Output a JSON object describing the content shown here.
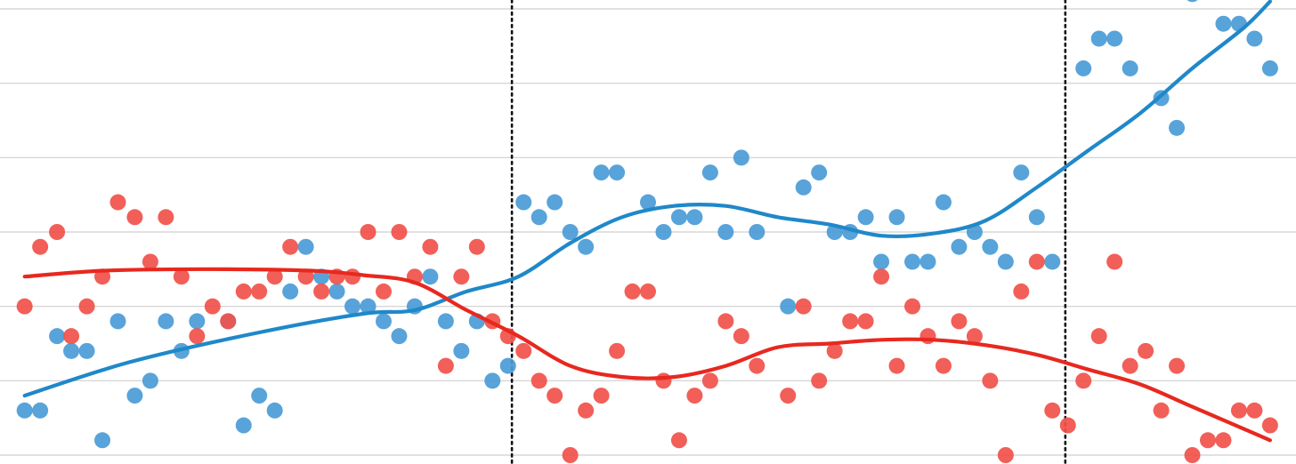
{
  "chart_data": {
    "type": "scatter",
    "title": "",
    "xlabel": "",
    "ylabel": "",
    "xlim": [
      0,
      1
    ],
    "ylim": [
      0,
      6
    ],
    "grid": true,
    "legend": "none",
    "ref_lines_x": [
      0.395,
      0.822
    ],
    "series": [
      {
        "color": "#4a9bd6",
        "trend_color": "#1f88c9",
        "points": [
          [
            0.019,
            0.6
          ],
          [
            0.031,
            0.6
          ],
          [
            0.044,
            1.6
          ],
          [
            0.055,
            1.4
          ],
          [
            0.067,
            1.4
          ],
          [
            0.079,
            0.2
          ],
          [
            0.091,
            1.8
          ],
          [
            0.104,
            0.8
          ],
          [
            0.116,
            1.0
          ],
          [
            0.128,
            1.8
          ],
          [
            0.14,
            1.4
          ],
          [
            0.152,
            1.8
          ],
          [
            0.176,
            1.8
          ],
          [
            0.188,
            0.4
          ],
          [
            0.2,
            0.8
          ],
          [
            0.212,
            0.6
          ],
          [
            0.224,
            2.2
          ],
          [
            0.236,
            2.8
          ],
          [
            0.248,
            2.4
          ],
          [
            0.26,
            2.2
          ],
          [
            0.272,
            2.0
          ],
          [
            0.284,
            2.0
          ],
          [
            0.296,
            1.8
          ],
          [
            0.308,
            1.6
          ],
          [
            0.32,
            2.0
          ],
          [
            0.332,
            2.4
          ],
          [
            0.344,
            1.8
          ],
          [
            0.356,
            1.4
          ],
          [
            0.368,
            1.8
          ],
          [
            0.38,
            1.0
          ],
          [
            0.392,
            1.2
          ],
          [
            0.404,
            3.4
          ],
          [
            0.416,
            3.2
          ],
          [
            0.428,
            3.4
          ],
          [
            0.44,
            3.0
          ],
          [
            0.452,
            2.8
          ],
          [
            0.464,
            3.8
          ],
          [
            0.476,
            3.8
          ],
          [
            0.5,
            3.4
          ],
          [
            0.512,
            3.0
          ],
          [
            0.524,
            3.2
          ],
          [
            0.536,
            3.2
          ],
          [
            0.548,
            3.8
          ],
          [
            0.56,
            3.0
          ],
          [
            0.572,
            4.0
          ],
          [
            0.584,
            3.0
          ],
          [
            0.608,
            2.0
          ],
          [
            0.62,
            3.6
          ],
          [
            0.632,
            3.8
          ],
          [
            0.644,
            3.0
          ],
          [
            0.656,
            3.0
          ],
          [
            0.668,
            3.2
          ],
          [
            0.68,
            2.6
          ],
          [
            0.692,
            3.2
          ],
          [
            0.704,
            2.6
          ],
          [
            0.716,
            2.6
          ],
          [
            0.728,
            3.4
          ],
          [
            0.74,
            2.8
          ],
          [
            0.752,
            3.0
          ],
          [
            0.764,
            2.8
          ],
          [
            0.776,
            2.6
          ],
          [
            0.788,
            3.8
          ],
          [
            0.8,
            3.2
          ],
          [
            0.812,
            2.6
          ],
          [
            0.836,
            5.2
          ],
          [
            0.848,
            5.6
          ],
          [
            0.86,
            5.6
          ],
          [
            0.872,
            5.2
          ],
          [
            0.896,
            4.8
          ],
          [
            0.908,
            4.4
          ],
          [
            0.92,
            6.2
          ],
          [
            0.944,
            5.8
          ],
          [
            0.956,
            5.8
          ],
          [
            0.968,
            5.6
          ],
          [
            0.98,
            5.2
          ]
        ],
        "trend": [
          [
            0.019,
            0.8
          ],
          [
            0.1,
            1.25
          ],
          [
            0.2,
            1.65
          ],
          [
            0.28,
            1.9
          ],
          [
            0.32,
            1.95
          ],
          [
            0.36,
            2.2
          ],
          [
            0.4,
            2.4
          ],
          [
            0.44,
            2.85
          ],
          [
            0.48,
            3.2
          ],
          [
            0.52,
            3.35
          ],
          [
            0.56,
            3.35
          ],
          [
            0.6,
            3.2
          ],
          [
            0.64,
            3.1
          ],
          [
            0.68,
            2.95
          ],
          [
            0.72,
            2.98
          ],
          [
            0.76,
            3.15
          ],
          [
            0.8,
            3.6
          ],
          [
            0.84,
            4.1
          ],
          [
            0.88,
            4.6
          ],
          [
            0.92,
            5.2
          ],
          [
            0.96,
            5.75
          ],
          [
            0.98,
            6.1
          ]
        ]
      },
      {
        "color": "#f0514a",
        "trend_color": "#e8281f",
        "points": [
          [
            0.019,
            2.0
          ],
          [
            0.031,
            2.8
          ],
          [
            0.044,
            3.0
          ],
          [
            0.055,
            1.6
          ],
          [
            0.067,
            2.0
          ],
          [
            0.079,
            2.4
          ],
          [
            0.091,
            3.4
          ],
          [
            0.104,
            3.2
          ],
          [
            0.116,
            2.6
          ],
          [
            0.128,
            3.2
          ],
          [
            0.14,
            2.4
          ],
          [
            0.152,
            1.6
          ],
          [
            0.164,
            2.0
          ],
          [
            0.176,
            1.8
          ],
          [
            0.188,
            2.2
          ],
          [
            0.2,
            2.2
          ],
          [
            0.212,
            2.4
          ],
          [
            0.224,
            2.8
          ],
          [
            0.236,
            2.4
          ],
          [
            0.248,
            2.2
          ],
          [
            0.26,
            2.4
          ],
          [
            0.272,
            2.4
          ],
          [
            0.284,
            3.0
          ],
          [
            0.296,
            2.2
          ],
          [
            0.308,
            3.0
          ],
          [
            0.32,
            2.4
          ],
          [
            0.332,
            2.8
          ],
          [
            0.344,
            1.2
          ],
          [
            0.356,
            2.4
          ],
          [
            0.368,
            2.8
          ],
          [
            0.38,
            1.8
          ],
          [
            0.392,
            1.6
          ],
          [
            0.404,
            1.4
          ],
          [
            0.416,
            1.0
          ],
          [
            0.428,
            0.8
          ],
          [
            0.44,
            0.0
          ],
          [
            0.452,
            0.6
          ],
          [
            0.464,
            0.8
          ],
          [
            0.476,
            1.4
          ],
          [
            0.488,
            2.2
          ],
          [
            0.5,
            2.2
          ],
          [
            0.512,
            1.0
          ],
          [
            0.524,
            0.2
          ],
          [
            0.536,
            0.8
          ],
          [
            0.548,
            1.0
          ],
          [
            0.56,
            1.8
          ],
          [
            0.572,
            1.6
          ],
          [
            0.584,
            1.2
          ],
          [
            0.608,
            0.8
          ],
          [
            0.62,
            2.0
          ],
          [
            0.632,
            1.0
          ],
          [
            0.644,
            1.4
          ],
          [
            0.656,
            1.8
          ],
          [
            0.668,
            1.8
          ],
          [
            0.68,
            2.4
          ],
          [
            0.692,
            1.2
          ],
          [
            0.704,
            2.0
          ],
          [
            0.716,
            1.6
          ],
          [
            0.728,
            1.2
          ],
          [
            0.74,
            1.8
          ],
          [
            0.752,
            1.6
          ],
          [
            0.764,
            1.0
          ],
          [
            0.776,
            0.0
          ],
          [
            0.788,
            2.2
          ],
          [
            0.8,
            2.6
          ],
          [
            0.812,
            0.6
          ],
          [
            0.824,
            0.4
          ],
          [
            0.836,
            1.0
          ],
          [
            0.848,
            1.6
          ],
          [
            0.86,
            2.6
          ],
          [
            0.872,
            1.2
          ],
          [
            0.884,
            1.4
          ],
          [
            0.896,
            0.6
          ],
          [
            0.908,
            1.2
          ],
          [
            0.92,
            0.0
          ],
          [
            0.932,
            0.2
          ],
          [
            0.944,
            0.2
          ],
          [
            0.956,
            0.6
          ],
          [
            0.968,
            0.6
          ],
          [
            0.98,
            0.4
          ]
        ],
        "trend": [
          [
            0.019,
            2.4
          ],
          [
            0.08,
            2.48
          ],
          [
            0.16,
            2.5
          ],
          [
            0.24,
            2.48
          ],
          [
            0.28,
            2.42
          ],
          [
            0.32,
            2.32
          ],
          [
            0.36,
            1.95
          ],
          [
            0.4,
            1.6
          ],
          [
            0.44,
            1.2
          ],
          [
            0.48,
            1.05
          ],
          [
            0.52,
            1.05
          ],
          [
            0.56,
            1.2
          ],
          [
            0.6,
            1.45
          ],
          [
            0.64,
            1.5
          ],
          [
            0.68,
            1.55
          ],
          [
            0.72,
            1.55
          ],
          [
            0.76,
            1.48
          ],
          [
            0.8,
            1.35
          ],
          [
            0.84,
            1.15
          ],
          [
            0.88,
            0.95
          ],
          [
            0.92,
            0.65
          ],
          [
            0.96,
            0.35
          ],
          [
            0.98,
            0.2
          ]
        ]
      }
    ]
  }
}
